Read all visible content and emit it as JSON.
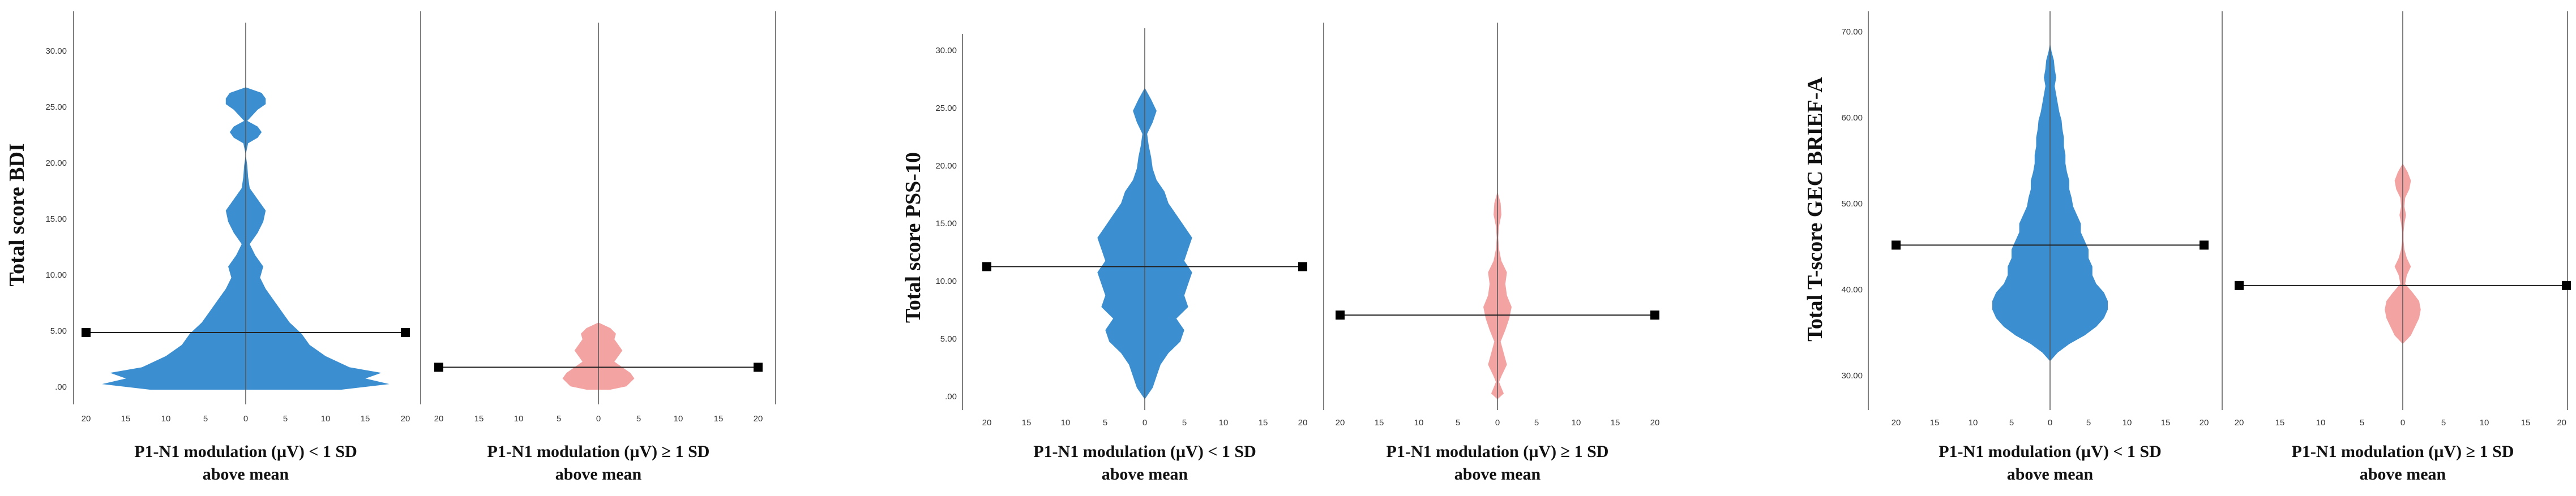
{
  "colors": {
    "low_group": "#3b8fd1",
    "high_group": "#f4a3a3",
    "axis": "#555555",
    "mean_line": "#222222",
    "marker": "#000000"
  },
  "chart_data": [
    {
      "type": "violin-population-pyramid",
      "title": "",
      "ylabel": "Total score BDI",
      "ylim": [
        0,
        32
      ],
      "yticks": [
        "30.00",
        "25.00",
        "20.00",
        "15.00",
        "10.00",
        "5.00",
        ".00"
      ],
      "ytick_values": [
        30,
        25,
        20,
        15,
        10,
        5,
        0
      ],
      "xticks": [
        "20",
        "15",
        "10",
        "5",
        "0",
        "5",
        "10",
        "15",
        "20"
      ],
      "xlim": [
        -20,
        20
      ],
      "panels": [
        {
          "name": "low",
          "group": "P1-N1 modulation (µV) < 1 SD",
          "group_line2": "above mean",
          "mean": 5.1,
          "profile": [
            [
              0,
              12
            ],
            [
              0.5,
              18
            ],
            [
              1,
              15
            ],
            [
              1.5,
              17
            ],
            [
              2,
              13
            ],
            [
              3,
              10
            ],
            [
              4,
              8
            ],
            [
              5,
              7
            ],
            [
              6,
              5.5
            ],
            [
              7,
              4.5
            ],
            [
              8,
              3.5
            ],
            [
              9,
              2.5
            ],
            [
              10,
              1.8
            ],
            [
              11,
              2.2
            ],
            [
              12,
              1.2
            ],
            [
              13,
              0.5
            ],
            [
              14,
              1.5
            ],
            [
              15,
              2.2
            ],
            [
              16,
              2.5
            ],
            [
              17,
              1.5
            ],
            [
              18,
              0.5
            ],
            [
              19,
              0.3
            ],
            [
              20,
              0.2
            ],
            [
              21,
              0
            ],
            [
              22,
              0.3
            ],
            [
              22.5,
              1.5
            ],
            [
              23,
              2
            ],
            [
              23.5,
              1.5
            ],
            [
              24,
              0.2
            ],
            [
              25,
              1.5
            ],
            [
              25.5,
              2.5
            ],
            [
              26,
              2.5
            ],
            [
              26.5,
              2
            ],
            [
              27,
              0
            ]
          ]
        },
        {
          "name": "high",
          "group": "P1-N1 modulation (µV) ≥ 1 SD",
          "group_line2": "above mean",
          "mean": 2.0,
          "profile": [
            [
              0,
              1.5
            ],
            [
              0.3,
              3.5
            ],
            [
              1,
              4.5
            ],
            [
              1.5,
              4
            ],
            [
              2,
              3
            ],
            [
              2.5,
              2
            ],
            [
              3,
              2.5
            ],
            [
              3.5,
              3
            ],
            [
              4,
              2.5
            ],
            [
              4.5,
              2
            ],
            [
              5,
              2.2
            ],
            [
              5.5,
              1.5
            ],
            [
              6,
              0
            ]
          ]
        }
      ]
    },
    {
      "type": "violin-population-pyramid",
      "title": "",
      "ylabel": "Total score PSS-10",
      "ylim": [
        0,
        32
      ],
      "yticks": [
        "30.00",
        "25.00",
        "20.00",
        "15.00",
        "10.00",
        "5.00",
        ".00"
      ],
      "ytick_values": [
        30,
        25,
        20,
        15,
        10,
        5,
        0
      ],
      "xticks": [
        "20",
        "15",
        "10",
        "5",
        "0",
        "5",
        "10",
        "15",
        "20"
      ],
      "xlim": [
        -20,
        20
      ],
      "panels": [
        {
          "name": "low",
          "group": "P1-N1 modulation (µV) < 1 SD",
          "group_line2": "above mean",
          "mean": 11.5,
          "profile": [
            [
              0,
              0
            ],
            [
              0.5,
              0.5
            ],
            [
              1,
              1
            ],
            [
              2,
              1.5
            ],
            [
              3,
              2
            ],
            [
              4,
              3
            ],
            [
              5,
              4.5
            ],
            [
              6,
              5
            ],
            [
              7,
              4
            ],
            [
              8,
              5.5
            ],
            [
              9,
              5
            ],
            [
              10,
              5.5
            ],
            [
              11,
              6
            ],
            [
              12,
              5
            ],
            [
              13,
              5.5
            ],
            [
              14,
              6
            ],
            [
              15,
              5
            ],
            [
              16,
              4
            ],
            [
              17,
              3
            ],
            [
              18,
              2.5
            ],
            [
              19,
              1.5
            ],
            [
              20,
              1
            ],
            [
              21,
              0.8
            ],
            [
              22,
              0.5
            ],
            [
              23,
              0.3
            ],
            [
              24,
              1
            ],
            [
              25,
              1.5
            ],
            [
              26,
              0.8
            ],
            [
              27,
              0
            ]
          ]
        },
        {
          "name": "high",
          "group": "P1-N1 modulation (µV) ≥ 1 SD",
          "group_line2": "above mean",
          "mean": 7.3,
          "profile": [
            [
              0,
              0
            ],
            [
              0.5,
              0.8
            ],
            [
              1,
              0.5
            ],
            [
              1.5,
              0.2
            ],
            [
              2,
              0.5
            ],
            [
              3,
              1.2
            ],
            [
              4,
              0.8
            ],
            [
              5,
              0.4
            ],
            [
              6,
              1
            ],
            [
              7,
              1.5
            ],
            [
              8,
              1.8
            ],
            [
              9,
              1.2
            ],
            [
              10,
              1
            ],
            [
              11,
              1.2
            ],
            [
              12,
              0.5
            ],
            [
              13,
              0.2
            ],
            [
              14,
              0.1
            ],
            [
              15,
              0.2
            ],
            [
              16,
              0.5
            ],
            [
              17,
              0.4
            ],
            [
              18,
              0
            ]
          ]
        }
      ]
    },
    {
      "type": "violin-population-pyramid",
      "title": "",
      "ylabel": "Total T-score GEC BRIEF-A",
      "ylim": [
        28,
        72
      ],
      "yticks": [
        "70.00",
        "60.00",
        "50.00",
        "40.00",
        "30.00"
      ],
      "ytick_values": [
        70,
        60,
        50,
        40,
        30
      ],
      "xticks": [
        "20",
        "15",
        "10",
        "5",
        "0",
        "5",
        "10",
        "15",
        "20"
      ],
      "xlim": [
        -20,
        20
      ],
      "panels": [
        {
          "name": "low",
          "group": "P1-N1 modulation (µV) < 1 SD",
          "group_line2": "above mean",
          "mean": 45.5,
          "profile": [
            [
              32,
              0
            ],
            [
              33,
              1
            ],
            [
              34,
              2.5
            ],
            [
              35,
              4.5
            ],
            [
              36,
              6
            ],
            [
              37,
              7
            ],
            [
              38,
              7.5
            ],
            [
              39,
              7.5
            ],
            [
              40,
              7
            ],
            [
              41,
              6
            ],
            [
              42,
              5.5
            ],
            [
              43,
              5.5
            ],
            [
              44,
              5
            ],
            [
              45,
              5
            ],
            [
              46,
              4.5
            ],
            [
              47,
              4
            ],
            [
              48,
              4
            ],
            [
              49,
              3.5
            ],
            [
              50,
              3
            ],
            [
              51,
              2.8
            ],
            [
              52,
              2.5
            ],
            [
              53,
              2.5
            ],
            [
              54,
              2.2
            ],
            [
              55,
              2
            ],
            [
              56,
              2
            ],
            [
              57,
              1.8
            ],
            [
              58,
              1.8
            ],
            [
              59,
              1.6
            ],
            [
              60,
              1.5
            ],
            [
              61,
              1.2
            ],
            [
              62,
              1
            ],
            [
              63,
              0.8
            ],
            [
              64,
              0.6
            ],
            [
              65,
              0.8
            ],
            [
              66,
              0.6
            ],
            [
              67,
              0.5
            ],
            [
              68,
              0.2
            ],
            [
              69,
              0
            ]
          ]
        },
        {
          "name": "high",
          "group": "P1-N1 modulation (µV) ≥ 1 SD",
          "group_line2": "above mean",
          "mean": 40.8,
          "profile": [
            [
              34,
              0
            ],
            [
              35,
              1
            ],
            [
              36,
              1.5
            ],
            [
              37,
              2
            ],
            [
              38,
              2.2
            ],
            [
              39,
              2
            ],
            [
              40,
              1.2
            ],
            [
              41,
              0.3
            ],
            [
              42,
              0.5
            ],
            [
              43,
              1
            ],
            [
              44,
              0.5
            ],
            [
              45,
              0.2
            ],
            [
              46,
              0.1
            ],
            [
              47,
              0.1
            ],
            [
              48,
              0.2
            ],
            [
              49,
              0.4
            ],
            [
              50,
              0.2
            ],
            [
              51,
              0.3
            ],
            [
              52,
              0.8
            ],
            [
              53,
              1
            ],
            [
              54,
              0.6
            ],
            [
              55,
              0
            ]
          ]
        }
      ]
    }
  ]
}
